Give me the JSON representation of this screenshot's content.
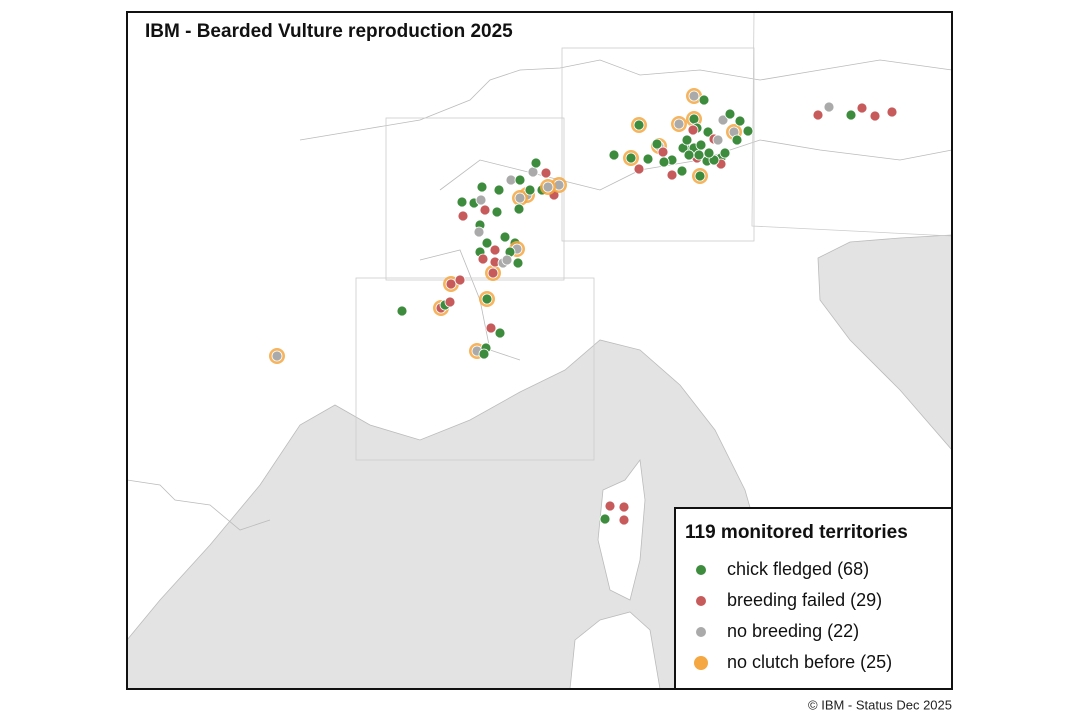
{
  "title": "IBM - Bearded Vulture reproduction 2025",
  "legend": {
    "title": "119 monitored territories",
    "items": [
      {
        "label": "chick fledged (68)",
        "color": "#3d8b3d"
      },
      {
        "label": "breeding failed (29)",
        "color": "#c75a5a"
      },
      {
        "label": "no breeding (22)",
        "color": "#aaaaaa"
      },
      {
        "label": "no clutch before (25)",
        "color": "#f5a742"
      }
    ]
  },
  "footer": "© IBM - Status Dec 2025"
}
